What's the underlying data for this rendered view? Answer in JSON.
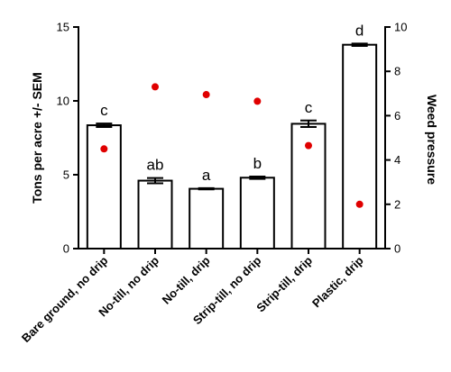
{
  "chart_data": {
    "type": "bar",
    "title": "",
    "xlabel": "",
    "ylabel": "Tons per acre +/- SEM",
    "y2label": "Weed pressure",
    "ylim": [
      0,
      15
    ],
    "yticks": [
      0,
      5,
      10,
      15
    ],
    "y2lim": [
      0,
      10
    ],
    "y2ticks": [
      0,
      2,
      4,
      6,
      8,
      10
    ],
    "grid": false,
    "categories": [
      "Bare ground, no drip",
      "No-till, no drip",
      "No-till, drip",
      "Strip-till, no drip",
      "Strip-till, drip",
      "Plastic, drip"
    ],
    "series": [
      {
        "type": "bar",
        "axis": "left",
        "values": [
          8.35,
          4.6,
          4.05,
          4.8,
          8.45,
          13.8
        ],
        "sem": [
          0.12,
          0.18,
          0.04,
          0.08,
          0.22,
          0.08
        ],
        "letters": [
          "c",
          "ab",
          "a",
          "b",
          "c",
          "d"
        ],
        "color": "#ffffff",
        "edge_color": "#000000"
      },
      {
        "type": "scatter",
        "axis": "right",
        "values": [
          4.5,
          7.3,
          6.95,
          6.65,
          4.65,
          2.0
        ],
        "color": "#e00000"
      }
    ]
  }
}
